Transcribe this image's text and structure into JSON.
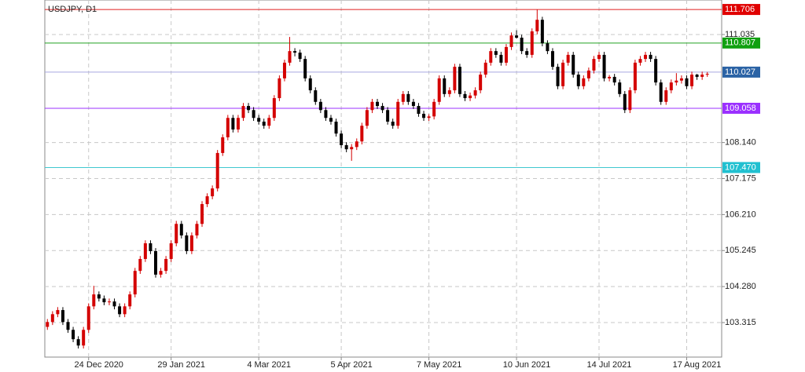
{
  "chart_data": {
    "type": "candlestick",
    "title": "USDJPY, D1",
    "bull_color": "#d40000",
    "bear_color": "#000000",
    "grid": true,
    "xlim": [
      -0.5,
      128.5
    ],
    "ylim": [
      102.39,
      111.96
    ],
    "xticks": [
      {
        "value": 8,
        "label": "24 Dec 2020"
      },
      {
        "value": 24,
        "label": "29 Jan 2021"
      },
      {
        "value": 41,
        "label": "4 Mar 2021"
      },
      {
        "value": 57,
        "label": "5 Apr 2021"
      },
      {
        "value": 74,
        "label": "7 May 2021"
      },
      {
        "value": 91,
        "label": "10 Jun 2021"
      },
      {
        "value": 107,
        "label": "14 Jul 2021"
      },
      {
        "value": 124,
        "label": "17 Aug 2021"
      }
    ],
    "yticks": [
      {
        "value": 103.315,
        "label": "103.315"
      },
      {
        "value": 104.28,
        "label": "104.280"
      },
      {
        "value": 105.245,
        "label": "105.245"
      },
      {
        "value": 106.21,
        "label": "106.210"
      },
      {
        "value": 107.175,
        "label": "107.175"
      },
      {
        "value": 108.14,
        "label": "108.140"
      },
      {
        "value": 111.035,
        "label": "111.035"
      }
    ],
    "levels": [
      {
        "value": 111.706,
        "label": "111.706",
        "color": "#e02020",
        "box": "#e00000"
      },
      {
        "value": 110.807,
        "label": "110.807",
        "color": "#20a020",
        "box": "#10a010"
      },
      {
        "value": 110.027,
        "label": "110.027",
        "color": "#a8a8e0",
        "box": "#2b63a5"
      },
      {
        "value": 109.058,
        "label": "109.058",
        "color": "#9b30ff",
        "box": "#9b30ff"
      },
      {
        "value": 107.47,
        "label": "107.470",
        "color": "#40c8d0",
        "box": "#20c0d0"
      }
    ],
    "ohlc": [
      [
        103.2,
        103.41,
        103.12,
        103.33
      ],
      [
        103.33,
        103.62,
        103.25,
        103.54
      ],
      [
        103.54,
        103.73,
        103.46,
        103.65
      ],
      [
        103.65,
        103.73,
        103.25,
        103.33
      ],
      [
        103.33,
        103.41,
        103.04,
        103.12
      ],
      [
        103.12,
        103.2,
        102.79,
        102.87
      ],
      [
        102.87,
        102.95,
        102.62,
        102.7
      ],
      [
        102.7,
        103.2,
        102.62,
        103.12
      ],
      [
        103.12,
        103.83,
        103.04,
        103.75
      ],
      [
        103.75,
        104.3,
        103.67,
        104.07
      ],
      [
        104.07,
        104.15,
        103.88,
        103.96
      ],
      [
        103.96,
        104.04,
        103.78,
        103.86
      ],
      [
        103.86,
        103.96,
        103.78,
        103.88
      ],
      [
        103.88,
        103.96,
        103.67,
        103.75
      ],
      [
        103.75,
        103.83,
        103.46,
        103.54
      ],
      [
        103.54,
        103.83,
        103.46,
        103.75
      ],
      [
        103.75,
        104.15,
        103.67,
        104.07
      ],
      [
        104.07,
        104.78,
        103.99,
        104.7
      ],
      [
        104.7,
        105.1,
        104.62,
        105.02
      ],
      [
        105.02,
        105.52,
        104.94,
        105.44
      ],
      [
        105.44,
        105.52,
        105.15,
        105.23
      ],
      [
        105.23,
        105.31,
        104.52,
        104.6
      ],
      [
        104.6,
        104.78,
        104.52,
        104.7
      ],
      [
        104.7,
        105.1,
        104.62,
        105.02
      ],
      [
        105.02,
        105.52,
        104.94,
        105.44
      ],
      [
        105.44,
        106.04,
        105.36,
        105.96
      ],
      [
        105.96,
        106.04,
        105.57,
        105.65
      ],
      [
        105.65,
        105.73,
        105.15,
        105.23
      ],
      [
        105.23,
        105.73,
        105.15,
        105.65
      ],
      [
        105.65,
        106.04,
        105.57,
        105.96
      ],
      [
        105.96,
        106.57,
        105.88,
        106.49
      ],
      [
        106.49,
        106.78,
        106.41,
        106.7
      ],
      [
        106.7,
        106.99,
        106.62,
        106.91
      ],
      [
        106.91,
        107.94,
        106.83,
        107.86
      ],
      [
        107.86,
        108.36,
        107.78,
        108.28
      ],
      [
        108.28,
        108.88,
        108.2,
        108.8
      ],
      [
        108.8,
        108.88,
        108.41,
        108.49
      ],
      [
        108.49,
        108.88,
        108.41,
        108.8
      ],
      [
        108.8,
        109.2,
        108.72,
        109.12
      ],
      [
        109.12,
        109.2,
        108.93,
        109.01
      ],
      [
        109.01,
        109.09,
        108.72,
        108.8
      ],
      [
        108.8,
        108.88,
        108.62,
        108.7
      ],
      [
        108.7,
        108.78,
        108.51,
        108.59
      ],
      [
        108.59,
        108.88,
        108.51,
        108.8
      ],
      [
        108.8,
        109.41,
        108.72,
        109.33
      ],
      [
        109.33,
        109.94,
        109.25,
        109.86
      ],
      [
        109.86,
        110.36,
        109.78,
        110.28
      ],
      [
        110.28,
        110.97,
        110.2,
        110.59
      ],
      [
        110.59,
        110.67,
        110.45,
        110.55
      ],
      [
        110.55,
        110.63,
        110.3,
        110.38
      ],
      [
        110.38,
        110.46,
        109.78,
        109.86
      ],
      [
        109.86,
        109.94,
        109.46,
        109.54
      ],
      [
        109.54,
        109.62,
        109.15,
        109.23
      ],
      [
        109.23,
        109.31,
        108.93,
        109.01
      ],
      [
        109.01,
        109.09,
        108.72,
        108.8
      ],
      [
        108.8,
        108.88,
        108.62,
        108.7
      ],
      [
        108.7,
        108.78,
        108.3,
        108.38
      ],
      [
        108.38,
        108.46,
        107.99,
        108.07
      ],
      [
        108.07,
        108.15,
        107.88,
        107.96
      ],
      [
        107.96,
        108.1,
        107.65,
        108.02
      ],
      [
        108.02,
        108.25,
        107.94,
        108.17
      ],
      [
        108.17,
        108.67,
        108.09,
        108.59
      ],
      [
        108.59,
        109.09,
        108.51,
        109.01
      ],
      [
        109.01,
        109.31,
        108.93,
        109.23
      ],
      [
        109.23,
        109.31,
        109.04,
        109.12
      ],
      [
        109.12,
        109.2,
        108.93,
        109.01
      ],
      [
        109.01,
        109.09,
        108.62,
        108.7
      ],
      [
        108.7,
        108.78,
        108.51,
        108.59
      ],
      [
        108.59,
        109.31,
        108.51,
        109.23
      ],
      [
        109.23,
        109.52,
        109.15,
        109.44
      ],
      [
        109.44,
        109.52,
        109.15,
        109.23
      ],
      [
        109.23,
        109.31,
        109.04,
        109.12
      ],
      [
        109.12,
        109.2,
        108.83,
        108.91
      ],
      [
        108.91,
        108.99,
        108.72,
        108.8
      ],
      [
        108.8,
        108.9,
        108.72,
        108.84
      ],
      [
        108.84,
        109.31,
        108.76,
        109.23
      ],
      [
        109.23,
        109.94,
        109.15,
        109.86
      ],
      [
        109.86,
        109.94,
        109.36,
        109.44
      ],
      [
        109.44,
        109.62,
        109.36,
        109.54
      ],
      [
        109.54,
        110.25,
        109.46,
        110.17
      ],
      [
        110.17,
        110.25,
        109.36,
        109.44
      ],
      [
        109.44,
        109.52,
        109.25,
        109.33
      ],
      [
        109.33,
        109.48,
        109.25,
        109.4
      ],
      [
        109.4,
        109.62,
        109.32,
        109.54
      ],
      [
        109.54,
        110.04,
        109.46,
        109.96
      ],
      [
        109.96,
        110.36,
        109.88,
        110.28
      ],
      [
        110.28,
        110.67,
        110.2,
        110.59
      ],
      [
        110.59,
        110.67,
        110.41,
        110.49
      ],
      [
        110.49,
        110.57,
        110.2,
        110.28
      ],
      [
        110.28,
        110.78,
        110.2,
        110.7
      ],
      [
        110.7,
        111.09,
        110.62,
        111.01
      ],
      [
        111.01,
        111.15,
        110.93,
        110.95
      ],
      [
        110.95,
        111.03,
        110.51,
        110.59
      ],
      [
        110.59,
        110.67,
        110.41,
        110.49
      ],
      [
        110.49,
        111.2,
        110.41,
        111.12
      ],
      [
        111.12,
        111.706,
        111.04,
        111.43
      ],
      [
        111.43,
        111.51,
        110.72,
        110.8
      ],
      [
        110.8,
        110.88,
        110.51,
        110.59
      ],
      [
        110.59,
        110.67,
        110.09,
        110.17
      ],
      [
        110.17,
        110.25,
        109.57,
        109.65
      ],
      [
        109.65,
        110.36,
        109.57,
        110.28
      ],
      [
        110.28,
        110.57,
        110.2,
        110.49
      ],
      [
        110.49,
        110.57,
        109.88,
        109.96
      ],
      [
        109.96,
        110.04,
        109.57,
        109.65
      ],
      [
        109.65,
        109.94,
        109.57,
        109.86
      ],
      [
        109.86,
        110.15,
        109.78,
        110.07
      ],
      [
        110.07,
        110.46,
        109.99,
        110.38
      ],
      [
        110.38,
        110.57,
        110.3,
        110.49
      ],
      [
        110.49,
        110.57,
        109.78,
        109.86
      ],
      [
        109.86,
        109.95,
        109.78,
        109.9
      ],
      [
        109.9,
        109.98,
        109.67,
        109.75
      ],
      [
        109.75,
        109.83,
        109.36,
        109.44
      ],
      [
        109.44,
        109.52,
        108.93,
        109.01
      ],
      [
        109.01,
        109.62,
        108.93,
        109.54
      ],
      [
        109.54,
        110.36,
        109.46,
        110.28
      ],
      [
        110.28,
        110.46,
        110.2,
        110.38
      ],
      [
        110.38,
        110.57,
        110.3,
        110.49
      ],
      [
        110.49,
        110.57,
        110.3,
        110.38
      ],
      [
        110.38,
        110.46,
        109.67,
        109.75
      ],
      [
        109.75,
        109.83,
        109.15,
        109.23
      ],
      [
        109.23,
        109.62,
        109.15,
        109.54
      ],
      [
        109.54,
        109.83,
        109.46,
        109.75
      ],
      [
        109.75,
        110.0,
        109.67,
        109.8
      ],
      [
        109.8,
        109.94,
        109.72,
        109.86
      ],
      [
        109.86,
        109.94,
        109.57,
        109.65
      ],
      [
        109.65,
        110.04,
        109.57,
        109.96
      ],
      [
        109.96,
        109.98,
        109.82,
        109.9
      ],
      [
        109.9,
        110.04,
        109.82,
        109.96
      ],
      [
        109.96,
        110.03,
        109.9,
        109.98
      ]
    ]
  }
}
